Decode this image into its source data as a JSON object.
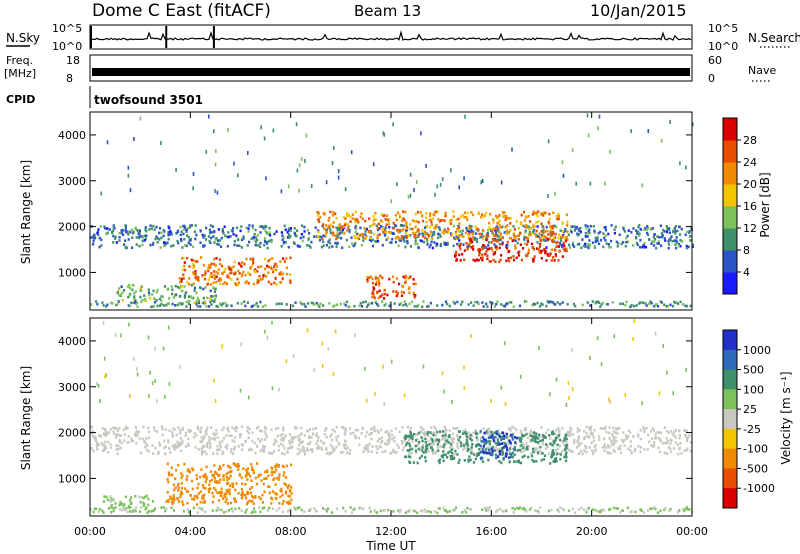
{
  "header": {
    "title": "Dome C East (fitACF)",
    "beam": "Beam 13",
    "date": "10/Jan/2015"
  },
  "panels": {
    "nsky": {
      "label": "N.Sky",
      "tick_top": "10^5",
      "tick_bottom": "10^0",
      "right_label": "N.Search",
      "right_tick_top": "10^5",
      "right_tick_bottom": "10^0"
    },
    "freq": {
      "label_line1": "Freq.",
      "label_line2": "[MHz]",
      "tick_top": "18",
      "tick_bottom": "8",
      "right_label": "Nave",
      "right_tick_top": "60",
      "right_tick_bottom": "0"
    },
    "cpid": {
      "label": "CPID",
      "text": "twofsound 3501"
    }
  },
  "axes": {
    "ylabel": "Slant Range [km]",
    "xlabel": "Time UT",
    "yticks": [
      "1000",
      "2000",
      "3000",
      "4000"
    ],
    "xticks": [
      "00:00",
      "04:00",
      "08:00",
      "12:00",
      "16:00",
      "20:00",
      "00:00"
    ]
  },
  "colorbars": {
    "power": {
      "label": "Power [dB]",
      "ticks": [
        "4",
        "8",
        "12",
        "16",
        "20",
        "24",
        "28"
      ],
      "colors": [
        "#1a1aff",
        "#2b55c7",
        "#3e8f6a",
        "#7bc25b",
        "#f2c500",
        "#f08a00",
        "#e84d00",
        "#d80000"
      ]
    },
    "velocity": {
      "label": "Velocity [m s⁻¹]",
      "ticks": [
        "1000",
        "500",
        "100",
        "25",
        "-25",
        "-100",
        "-500",
        "-1000"
      ],
      "colors": [
        "#2030c8",
        "#2e6ab8",
        "#3e8f6a",
        "#7bc25b",
        "#c8c8c0",
        "#f2c500",
        "#f08a00",
        "#e84d00",
        "#d80000"
      ]
    }
  },
  "chart_data": [
    {
      "type": "heatmap",
      "title": "Power",
      "x_range": [
        "00:00",
        "24:00"
      ],
      "y_range_km": [
        180,
        4500
      ],
      "colorbar_label": "Power [dB]",
      "colorbar_ticks": [
        4,
        8,
        12,
        16,
        20,
        24,
        28
      ],
      "features": [
        {
          "t_start_h": 0.0,
          "t_end_h": 24.0,
          "range_km": [
            1500,
            2000
          ],
          "power_db": 8,
          "note": "persistent band"
        },
        {
          "t_start_h": 9.0,
          "t_end_h": 19.0,
          "range_km": [
            1700,
            2300
          ],
          "power_db": 22
        },
        {
          "t_start_h": 14.5,
          "t_end_h": 19.0,
          "range_km": [
            1200,
            1700
          ],
          "power_db": 28
        },
        {
          "t_start_h": 11.0,
          "t_end_h": 13.0,
          "range_km": [
            400,
            900
          ],
          "power_db": 26
        },
        {
          "t_start_h": 1.0,
          "t_end_h": 5.0,
          "range_km": [
            300,
            700
          ],
          "power_db": 12
        },
        {
          "t_start_h": 3.5,
          "t_end_h": 8.0,
          "range_km": [
            700,
            1300
          ],
          "power_db": 24
        }
      ]
    },
    {
      "type": "heatmap",
      "title": "Velocity",
      "x_range": [
        "00:00",
        "24:00"
      ],
      "y_range_km": [
        180,
        4500
      ],
      "colorbar_label": "Velocity [m s⁻¹]",
      "colorbar_ticks": [
        1000,
        500,
        100,
        25,
        -25,
        -100,
        -500,
        -1000
      ],
      "features": [
        {
          "t_start_h": 0.0,
          "t_end_h": 24.0,
          "range_km": [
            1500,
            2100
          ],
          "velocity": 0
        },
        {
          "t_start_h": 3.0,
          "t_end_h": 8.0,
          "range_km": [
            400,
            1300
          ],
          "velocity": -300
        },
        {
          "t_start_h": 12.5,
          "t_end_h": 19.0,
          "range_km": [
            1300,
            2000
          ],
          "velocity": 300
        },
        {
          "t_start_h": 15.5,
          "t_end_h": 17.0,
          "range_km": [
            1400,
            2000
          ],
          "velocity": 1000
        },
        {
          "t_start_h": 0.5,
          "t_end_h": 2.5,
          "range_km": [
            250,
            600
          ],
          "velocity": 50
        }
      ]
    },
    {
      "type": "line",
      "title": "N.Sky",
      "x_range": [
        "00:00",
        "24:00"
      ],
      "note": "near-constant low noise with occasional spikes at ~03:00, ~05:00"
    },
    {
      "type": "area",
      "title": "Freq.",
      "x_range": [
        "00:00",
        "24:00"
      ],
      "note": "filled band between ~10 and ~12 MHz throughout"
    }
  ]
}
